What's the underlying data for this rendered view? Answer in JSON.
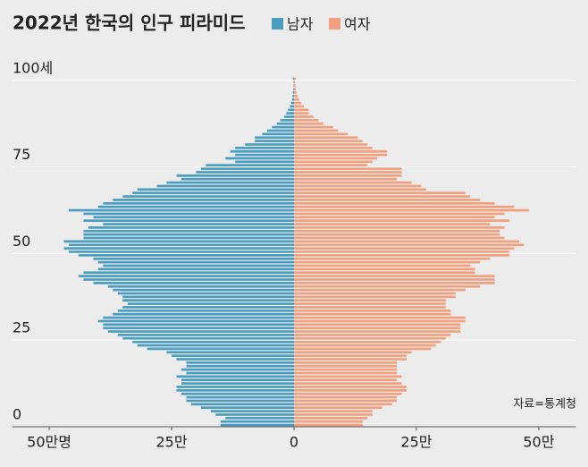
{
  "chart_data": {
    "type": "pyramid",
    "title": "2022년 한국의 인구 피라미드",
    "source": "자료=통계청",
    "y": [
      0,
      1,
      2,
      3,
      4,
      5,
      6,
      7,
      8,
      9,
      10,
      11,
      12,
      13,
      14,
      15,
      16,
      17,
      18,
      19,
      20,
      21,
      22,
      23,
      24,
      25,
      26,
      27,
      28,
      29,
      30,
      31,
      32,
      33,
      34,
      35,
      36,
      37,
      38,
      39,
      40,
      41,
      42,
      43,
      44,
      45,
      46,
      47,
      48,
      49,
      50,
      51,
      52,
      53,
      54,
      55,
      56,
      57,
      58,
      59,
      60,
      61,
      62,
      63,
      64,
      65,
      66,
      67,
      68,
      69,
      70,
      71,
      72,
      73,
      74,
      75,
      76,
      77,
      78,
      79,
      80,
      81,
      82,
      83,
      84,
      85,
      86,
      87,
      88,
      89,
      90,
      91,
      92,
      93,
      94,
      95,
      96,
      97,
      98,
      99,
      100
    ],
    "series": [
      {
        "name": "남자",
        "color": "#4b9cbf",
        "values": [
          15,
          15,
          14,
          16,
          17,
          19,
          21,
          22,
          22,
          23,
          24,
          24,
          23,
          23,
          24,
          22,
          23,
          22,
          22,
          24,
          25,
          26,
          30,
          32,
          33,
          35,
          36,
          38,
          39,
          39,
          40,
          39,
          37,
          36,
          35,
          34,
          35,
          35,
          36,
          37,
          38,
          41,
          43,
          44,
          43,
          40,
          39,
          40,
          41,
          44,
          46,
          47,
          46,
          47,
          43,
          43,
          43,
          42,
          39,
          43,
          41,
          43,
          46,
          40,
          39,
          37,
          35,
          33,
          32,
          28,
          26,
          23,
          24,
          20,
          19,
          18,
          12,
          14,
          12,
          13,
          12,
          10,
          8,
          8,
          6.5,
          5.5,
          4.5,
          3.5,
          2.8,
          2,
          1.6,
          1.2,
          0.8,
          0.6,
          0.4,
          0.3,
          0.2,
          0.15,
          0.1,
          0.1,
          0.2
        ]
      },
      {
        "name": "여자",
        "color": "#f0a07f",
        "values": [
          14,
          14,
          15,
          16,
          16,
          18,
          20,
          21,
          21,
          22,
          23,
          23,
          22,
          21,
          22,
          21,
          21,
          21,
          21,
          23,
          23,
          24,
          28,
          29,
          30,
          31,
          32,
          34,
          34,
          34,
          35,
          35,
          32,
          32,
          31,
          31,
          31,
          33,
          33,
          35,
          38,
          41,
          41,
          41,
          37,
          37,
          36,
          38,
          40,
          44,
          44,
          45,
          47,
          46,
          43,
          42,
          42,
          43,
          40,
          44,
          41,
          43,
          48,
          45,
          41,
          38,
          36,
          35,
          27,
          26,
          24,
          21,
          22,
          22,
          22,
          15,
          16,
          17,
          19,
          19,
          16,
          15,
          14,
          13,
          11,
          9,
          8,
          6,
          5,
          4,
          3,
          3,
          2,
          1.5,
          1,
          0.8,
          0.5,
          0.4,
          0.3,
          0.2,
          0.4
        ]
      }
    ],
    "xlim": [
      -57.5,
      57.5
    ],
    "xticks": [
      {
        "value": -50,
        "label": "50만명"
      },
      {
        "value": -25,
        "label": "25만"
      },
      0,
      {
        "value": 25,
        "label": "25만"
      },
      {
        "value": 50,
        "label": "50만"
      }
    ],
    "ylim": [
      0,
      101
    ],
    "yticks": [
      0,
      25,
      50,
      75,
      {
        "value": 100,
        "label": "100세"
      }
    ],
    "grid": true
  }
}
